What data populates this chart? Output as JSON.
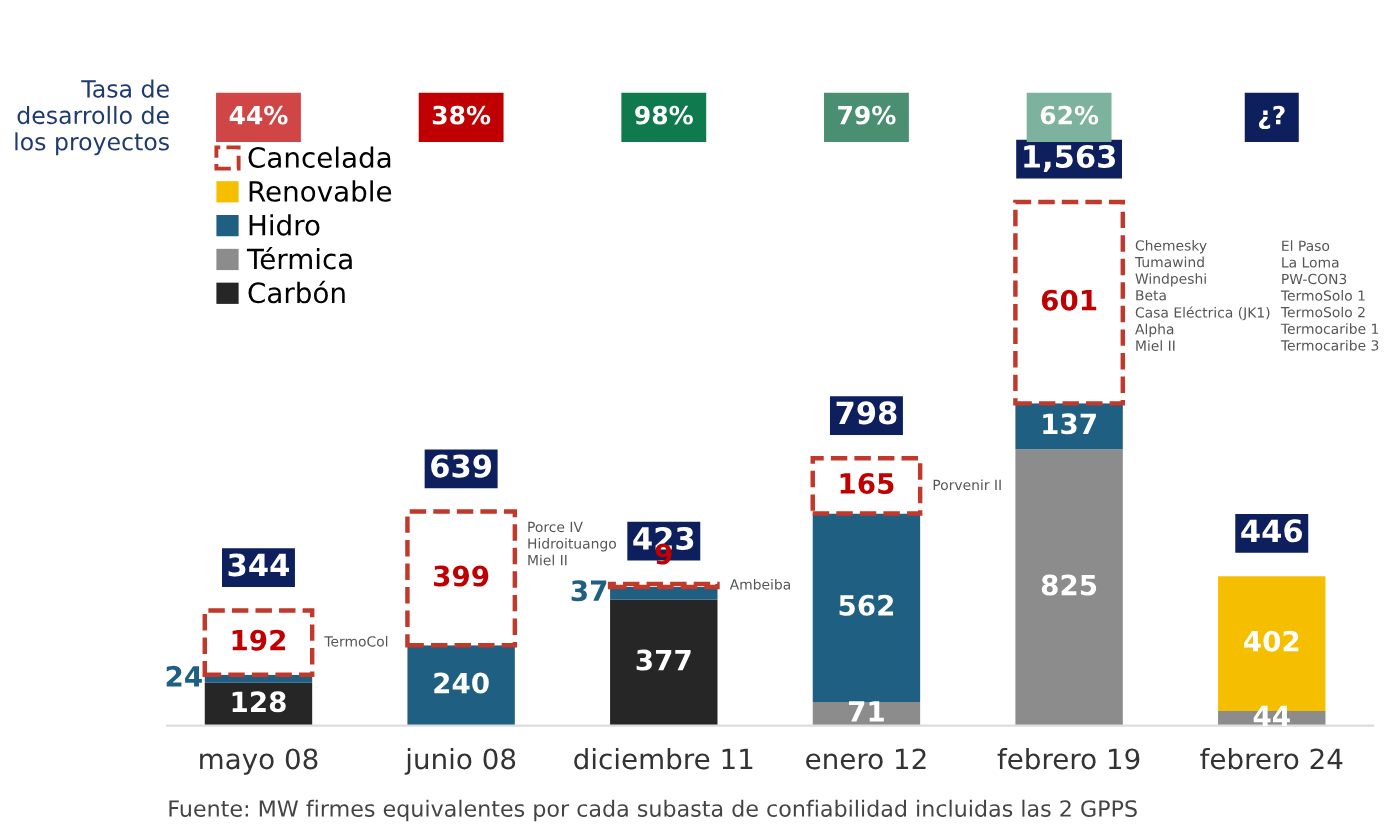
{
  "chart_data": {
    "type": "bar",
    "stacked": true,
    "data_labels": true,
    "legend": "top left",
    "tick_labels": "x",
    "grid": false,
    "categories": [
      "mayo 08",
      "junio 08",
      "diciembre 11",
      "enero 12",
      "febrero 19",
      "febrero 24"
    ],
    "series": [
      {
        "name": "Carbón",
        "color": "#262626",
        "values": [
          128,
          null,
          377,
          null,
          null,
          null
        ]
      },
      {
        "name": "Térmica",
        "color": "#8c8c8c",
        "values": [
          null,
          null,
          null,
          71,
          825,
          44
        ]
      },
      {
        "name": "Hidro",
        "color": "#1f5f82",
        "values": [
          24,
          240,
          37,
          562,
          137,
          null
        ]
      },
      {
        "name": "Renovable",
        "color": "#f5bf00",
        "values": [
          null,
          null,
          null,
          null,
          null,
          402
        ]
      },
      {
        "name": "Cancelada",
        "color": "#c0392b",
        "line_style": "dashed",
        "values": [
          192,
          399,
          9,
          165,
          601,
          null
        ]
      }
    ],
    "totals": [
      "344",
      "639",
      "423",
      "798",
      "1,563",
      "446"
    ],
    "annotations": [
      "Tasa de\ndesarrollo de\nlos proyectos",
      "44%",
      "38%",
      "98%",
      "79%",
      "62%",
      "¿?",
      "TermoCol",
      "Porce IV\nHidroituango\nMiel II",
      "Ambeiba",
      "Porvenir II",
      "Chemesky\nTumawind\nWindpeshi\nBeta\nCasa Eléctrica (JK1)\nAlpha\nMiel II",
      "El Paso\nLa Loma\nPW-CON3\nTermoSolo 1\nTermoSolo 2\nTermocaribe 1\nTermocaribe 3",
      "Fuente: MW firmes equivalentes por cada subasta de confiabilidad incluidas las 2 GPPS"
    ]
  }
}
